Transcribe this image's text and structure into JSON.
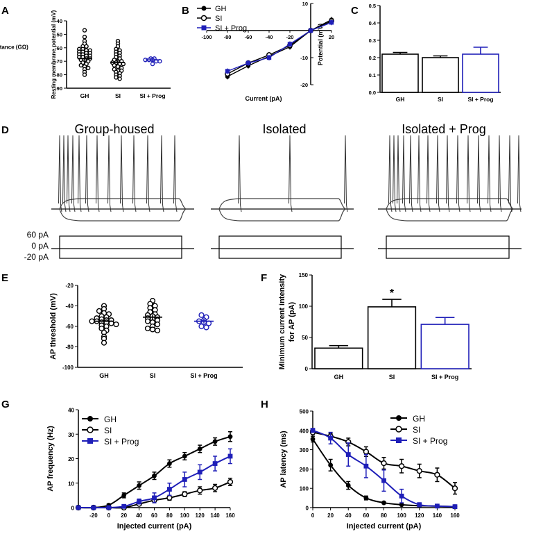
{
  "figure": {
    "panels": {
      "A": "A",
      "B": "B",
      "C": "C",
      "D": "D",
      "E": "E",
      "F": "F",
      "G": "G",
      "H": "H"
    }
  },
  "colors": {
    "black": "#000000",
    "blue": "#1f1fb8",
    "gray": "#555555"
  },
  "chart_data": [
    {
      "id": "A",
      "type": "scatter",
      "ylabel": "Resting membrane potential (mV)",
      "ylim": [
        -90,
        -40
      ],
      "yticks": [
        "-40",
        "-50",
        "-60",
        "-70",
        "-80",
        "-90"
      ],
      "categories": [
        "GH",
        "SI",
        "SI + Prog"
      ],
      "groups": [
        {
          "name": "GH",
          "color": "#000000",
          "mean": -68,
          "sem": 1.2,
          "points": [
            -47,
            -52,
            -55,
            -57,
            -59,
            -59,
            -61,
            -61,
            -62,
            -62,
            -63,
            -63,
            -64,
            -64,
            -65,
            -65,
            -66,
            -66,
            -67,
            -67,
            -68,
            -68,
            -69,
            -69,
            -70,
            -71,
            -72,
            -73,
            -74,
            -75,
            -76,
            -78,
            -80
          ]
        },
        {
          "name": "SI",
          "color": "#000000",
          "mean": -71,
          "sem": 1.3,
          "points": [
            -55,
            -57,
            -59,
            -61,
            -62,
            -63,
            -64,
            -65,
            -66,
            -67,
            -68,
            -69,
            -70,
            -70,
            -71,
            -71,
            -72,
            -72,
            -73,
            -74,
            -75,
            -76,
            -77,
            -77,
            -78,
            -79,
            -80,
            -81,
            -82,
            -83
          ]
        },
        {
          "name": "SI + Prog",
          "color": "#1f1fb8",
          "mean": -69,
          "sem": 0.8,
          "points": [
            -68,
            -68,
            -69,
            -69,
            -69,
            -70,
            -70,
            -72
          ]
        }
      ]
    },
    {
      "id": "B",
      "type": "line",
      "xlabel": "Current (pA)",
      "ylabel": "Potential (mV)",
      "xlim": [
        -100,
        20
      ],
      "ylim": [
        -20,
        10
      ],
      "xticks": [
        "-100",
        "-80",
        "-60",
        "-40",
        "-20",
        "20"
      ],
      "yticks": [
        "10",
        "-10",
        "-20"
      ],
      "x": [
        -80,
        -60,
        -40,
        -20,
        0,
        20
      ],
      "series": [
        {
          "name": "GH",
          "marker": "filled-circle",
          "color": "#000000",
          "values": [
            -17,
            -13,
            -9.5,
            -6,
            0,
            4
          ]
        },
        {
          "name": "SI",
          "marker": "open-circle",
          "color": "#000000",
          "values": [
            -16,
            -12,
            -9,
            -5.5,
            0,
            3.5
          ]
        },
        {
          "name": "SI + Prog",
          "marker": "filled-square",
          "color": "#1f1fb8",
          "values": [
            -15,
            -12,
            -10,
            -5,
            0,
            3
          ]
        }
      ]
    },
    {
      "id": "C",
      "type": "bar",
      "ylabel": "Input resistance (GΩ)",
      "ylim": [
        0,
        0.5
      ],
      "yticks": [
        "0.0",
        "0.1",
        "0.2",
        "0.3",
        "0.4",
        "0.5"
      ],
      "categories": [
        "GH",
        "SI",
        "SI + Prog"
      ],
      "values": [
        0.22,
        0.2,
        0.22
      ],
      "errors": [
        0.01,
        0.01,
        0.04
      ],
      "colors": [
        "#000000",
        "#000000",
        "#1f1fb8"
      ]
    },
    {
      "id": "D",
      "type": "traces",
      "titles": [
        "Group-housed",
        "Isolated",
        "Isolated + Prog"
      ],
      "stim_labels": [
        "60 pA",
        "0 pA",
        "-20 pA"
      ]
    },
    {
      "id": "E",
      "type": "scatter",
      "ylabel": "AP threshold (mV)",
      "ylim": [
        -100,
        -20
      ],
      "yticks": [
        "-20",
        "-40",
        "-60",
        "-80",
        "-100"
      ],
      "categories": [
        "GH",
        "SI",
        "SI + Prog"
      ],
      "groups": [
        {
          "name": "GH",
          "color": "#000000",
          "mean": -55,
          "sem": 1.5,
          "points": [
            -40,
            -43,
            -45,
            -47,
            -48,
            -50,
            -51,
            -52,
            -53,
            -54,
            -54,
            -55,
            -55,
            -56,
            -56,
            -57,
            -58,
            -59,
            -60,
            -62,
            -64,
            -66,
            -70,
            -72,
            -76
          ]
        },
        {
          "name": "SI",
          "color": "#000000",
          "mean": -51,
          "sem": 1.5,
          "points": [
            -35,
            -38,
            -40,
            -42,
            -44,
            -46,
            -48,
            -49,
            -50,
            -51,
            -52,
            -53,
            -54,
            -55,
            -56,
            -58,
            -60,
            -62,
            -63,
            -64
          ]
        },
        {
          "name": "SI + Prog",
          "color": "#1f1fb8",
          "mean": -55,
          "sem": 1.5,
          "points": [
            -49,
            -51,
            -54,
            -55,
            -56,
            -57,
            -60,
            -61
          ]
        }
      ]
    },
    {
      "id": "F",
      "type": "bar",
      "ylabel": "Minimum current intensity for AP (pA)",
      "ylim": [
        0,
        150
      ],
      "yticks": [
        "0",
        "50",
        "100",
        "150"
      ],
      "categories": [
        "GH",
        "SI",
        "SI + Prog"
      ],
      "values": [
        33,
        99,
        71
      ],
      "errors": [
        4,
        12,
        11
      ],
      "colors": [
        "#000000",
        "#000000",
        "#1f1fb8"
      ],
      "annotation": "*"
    },
    {
      "id": "G",
      "type": "line",
      "xlabel": "Injected current (pA)",
      "ylabel": "AP frequency (Hz)",
      "xlim": [
        -40,
        160
      ],
      "ylim": [
        0,
        40
      ],
      "xticks": [
        "-20",
        "0",
        "20",
        "40",
        "60",
        "80",
        "100",
        "120",
        "140",
        "160"
      ],
      "yticks": [
        "0",
        "10",
        "20",
        "30",
        "40"
      ],
      "x": [
        -40,
        -20,
        0,
        20,
        40,
        60,
        80,
        100,
        120,
        140,
        160
      ],
      "series": [
        {
          "name": "GH",
          "marker": "filled-circle",
          "color": "#000000",
          "values": [
            0,
            0,
            1,
            5,
            9,
            13,
            18,
            21,
            24,
            27,
            29
          ],
          "errors": [
            0,
            0,
            0.5,
            1,
            1.5,
            1.5,
            1.5,
            1.5,
            1.5,
            1.5,
            2
          ]
        },
        {
          "name": "SI",
          "marker": "open-circle",
          "color": "#000000",
          "values": [
            0,
            0,
            0,
            0,
            1.5,
            3,
            4,
            5.5,
            7,
            8,
            10.5
          ],
          "errors": [
            0,
            0,
            0,
            0,
            0.5,
            1,
            1,
            1,
            1.5,
            1.5,
            1.5
          ]
        },
        {
          "name": "SI + Prog",
          "marker": "filled-square",
          "color": "#1f1fb8",
          "values": [
            0,
            0,
            0,
            0.5,
            2.5,
            4,
            7.5,
            11.5,
            14.5,
            18,
            21
          ],
          "errors": [
            0,
            0,
            0,
            0.5,
            1,
            2,
            2.5,
            3,
            3,
            3,
            3
          ]
        }
      ]
    },
    {
      "id": "H",
      "type": "line",
      "xlabel": "Injected current (pA)",
      "ylabel": "AP latency (ms)",
      "xlim": [
        0,
        160
      ],
      "ylim": [
        0,
        500
      ],
      "xticks": [
        "0",
        "20",
        "40",
        "60",
        "80",
        "100",
        "120",
        "140",
        "160"
      ],
      "yticks": [
        "0",
        "100",
        "200",
        "300",
        "400",
        "500"
      ],
      "x": [
        0,
        20,
        40,
        60,
        80,
        100,
        120,
        140,
        160
      ],
      "series": [
        {
          "name": "GH",
          "marker": "filled-circle",
          "color": "#000000",
          "values": [
            355,
            220,
            115,
            50,
            25,
            15,
            10,
            8,
            5
          ],
          "errors": [
            15,
            30,
            20,
            10,
            5,
            3,
            3,
            2,
            2
          ]
        },
        {
          "name": "SI",
          "marker": "open-circle",
          "color": "#000000",
          "values": [
            390,
            370,
            340,
            290,
            230,
            215,
            190,
            170,
            100
          ],
          "errors": [
            10,
            15,
            20,
            25,
            30,
            35,
            35,
            35,
            30
          ]
        },
        {
          "name": "SI + Prog",
          "marker": "filled-square",
          "color": "#1f1fb8",
          "values": [
            400,
            360,
            275,
            215,
            140,
            60,
            15,
            8,
            5
          ],
          "errors": [
            10,
            30,
            60,
            60,
            55,
            35,
            10,
            5,
            3
          ]
        }
      ]
    }
  ]
}
